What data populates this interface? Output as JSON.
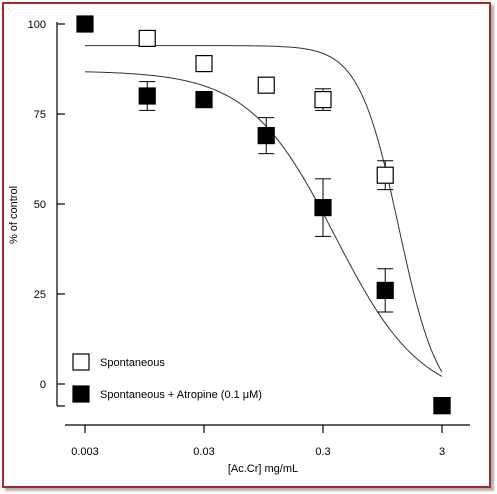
{
  "chart_data": {
    "type": "scatter",
    "xlabel": "[Ac.Cr] mg/mL",
    "ylabel": "% of control",
    "xscale": "log",
    "xlim": [
      0.003,
      3
    ],
    "ylim": [
      0,
      100
    ],
    "x_ticks": [
      {
        "value": 0.003,
        "label": "0.003"
      },
      {
        "value": 0.03,
        "label": "0.03"
      },
      {
        "value": 0.3,
        "label": "0.3"
      },
      {
        "value": 3,
        "label": "3"
      }
    ],
    "y_ticks": [
      {
        "value": 100,
        "label": "100"
      },
      {
        "value": 75,
        "label": "75"
      },
      {
        "value": 50,
        "label": "50"
      },
      {
        "value": 25,
        "label": "25"
      },
      {
        "value": 0,
        "label": "0"
      }
    ],
    "grid": false,
    "legend_position": "bottom-left",
    "series": [
      {
        "name": "Spontaneous",
        "marker": "open-square",
        "points": [
          {
            "x": 0.01,
            "y": 96,
            "err": 0
          },
          {
            "x": 0.03,
            "y": 89,
            "err": 0
          },
          {
            "x": 0.1,
            "y": 83,
            "err": 0
          },
          {
            "x": 0.3,
            "y": 79,
            "err": 3
          },
          {
            "x": 1,
            "y": 58,
            "err": 4
          },
          {
            "x": 3,
            "y": -6,
            "err": 0
          }
        ],
        "fit_curve": {
          "top": 94,
          "bottom": -7,
          "ec50": 1.3,
          "hill": 2.6
        }
      },
      {
        "name": "Spontaneous + Atropine (0.1 μM)",
        "marker": "filled-square",
        "points": [
          {
            "x": 0.003,
            "y": 100,
            "err": 0
          },
          {
            "x": 0.01,
            "y": 80,
            "err": 4
          },
          {
            "x": 0.03,
            "y": 79,
            "err": 0
          },
          {
            "x": 0.1,
            "y": 69,
            "err": 5
          },
          {
            "x": 0.3,
            "y": 49,
            "err": 8
          },
          {
            "x": 1,
            "y": 26,
            "err": 6
          },
          {
            "x": 3,
            "y": -6,
            "err": 0
          }
        ],
        "fit_curve": {
          "top": 87,
          "bottom": -5,
          "ec50": 0.38,
          "hill": 1.2
        }
      }
    ]
  },
  "colors": {
    "frame": "#a52a2a",
    "marker": "#000000",
    "axis": "#000000"
  }
}
